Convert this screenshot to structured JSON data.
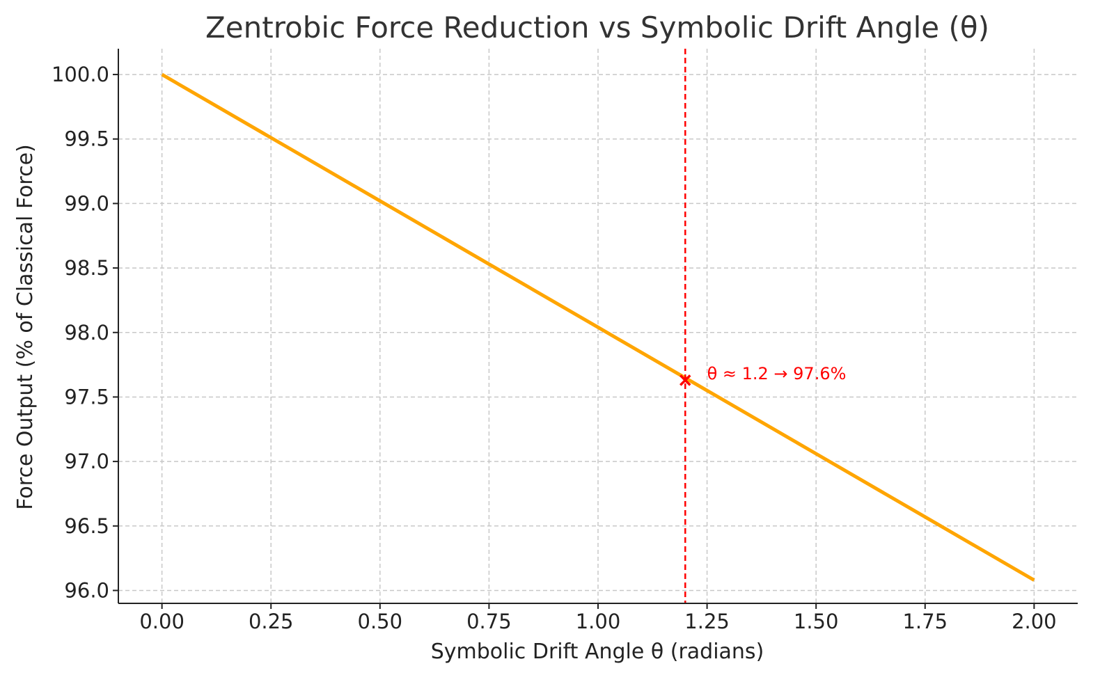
{
  "chart_data": {
    "type": "line",
    "title": "Zentrobic Force Reduction vs Symbolic Drift Angle (θ)",
    "xlabel": "Symbolic Drift Angle θ (radians)",
    "ylabel": "Force Output (% of Classical Force)",
    "xlim": [
      -0.1,
      2.1
    ],
    "ylim": [
      95.9,
      100.2
    ],
    "x_ticks": [
      0.0,
      0.25,
      0.5,
      0.75,
      1.0,
      1.25,
      1.5,
      1.75,
      2.0
    ],
    "x_tick_labels": [
      "0.00",
      "0.25",
      "0.50",
      "0.75",
      "1.00",
      "1.25",
      "1.50",
      "1.75",
      "2.00"
    ],
    "y_ticks": [
      96.0,
      96.5,
      97.0,
      97.5,
      98.0,
      98.5,
      99.0,
      99.5,
      100.0
    ],
    "y_tick_labels": [
      "96.0",
      "96.5",
      "97.0",
      "97.5",
      "98.0",
      "98.5",
      "99.0",
      "99.5",
      "100.0"
    ],
    "grid": true,
    "series": [
      {
        "color": "#FFA500",
        "x": [
          0.0,
          0.25,
          0.5,
          0.75,
          1.0,
          1.25,
          1.5,
          1.75,
          2.0
        ],
        "values": [
          100.0,
          99.51,
          99.02,
          98.53,
          98.04,
          97.55,
          97.06,
          96.57,
          96.08
        ]
      }
    ],
    "vline": {
      "x": 1.2,
      "color": "#FF0000",
      "style": "dashed"
    },
    "marker": {
      "x": 1.2,
      "y": 97.63,
      "symbol": "x",
      "color": "#FF0000"
    },
    "annotation": {
      "text": "θ ≈ 1.2 → 97.6%",
      "x": 1.25,
      "y": 97.68,
      "color": "#FF0000"
    }
  }
}
